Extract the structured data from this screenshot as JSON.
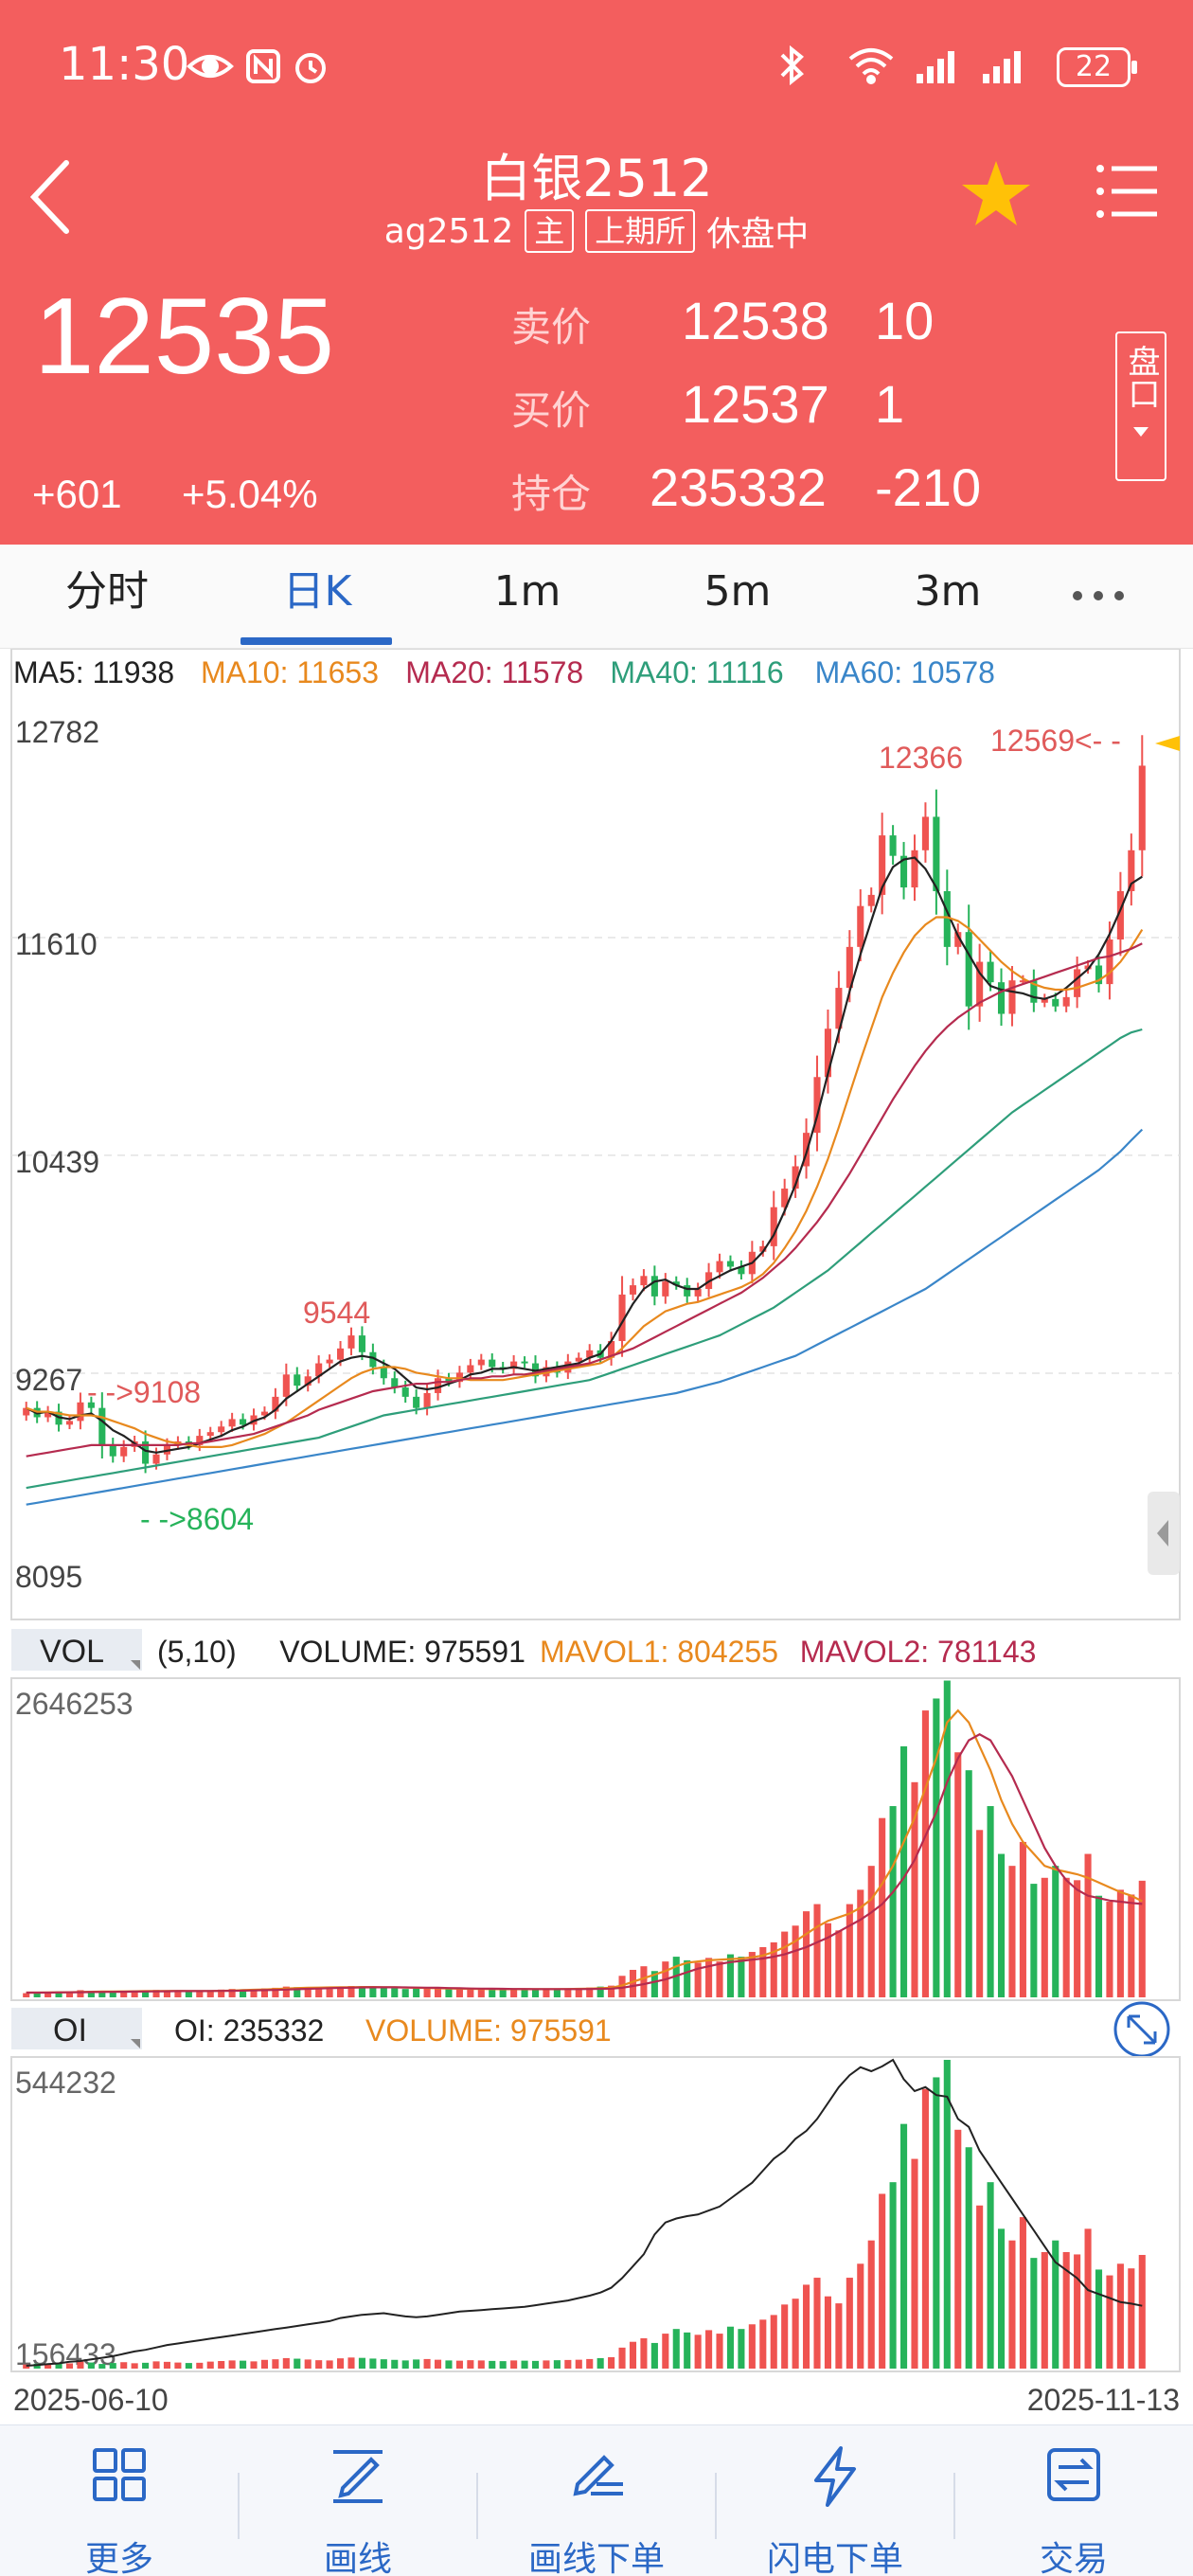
{
  "status": {
    "time": "11:30",
    "battery": "22"
  },
  "header": {
    "title": "白银2512",
    "code": "ag2512",
    "tag_main": "主",
    "tag_exchange": "上期所",
    "state": "休盘中",
    "last_price": "12535",
    "change": "+601",
    "change_pct": "+5.04%",
    "ask_label": "卖价",
    "ask_price": "12538",
    "ask_vol": "10",
    "bid_label": "买价",
    "bid_price": "12537",
    "bid_vol": "1",
    "oi_label": "持仓",
    "oi_value": "235332",
    "oi_change": "-210",
    "pankou_label": "盘口"
  },
  "tabs": [
    "分时",
    "日K",
    "1m",
    "5m",
    "3m"
  ],
  "chart_data": [
    {
      "type": "candlestick",
      "ma_legend": [
        {
          "label": "MA5: 11938",
          "color": "#222222"
        },
        {
          "label": "MA10: 11653",
          "color": "#e8891e"
        },
        {
          "label": "MA20: 11578",
          "color": "#b52b4f"
        },
        {
          "label": "MA40: 11116",
          "color": "#2e9e7a"
        },
        {
          "label": "MA60: 10578",
          "color": "#3a86c9"
        }
      ],
      "y_ticks": [
        "12782",
        "11610",
        "10439",
        "9267",
        "8095"
      ],
      "ylim": [
        8095,
        12782
      ],
      "annotations": {
        "low_left": "- ->8604",
        "high_left": "- ->9108",
        "mid_high": "9544",
        "top_high": "12366",
        "last_high": "12569<- -"
      },
      "closes": [
        9080,
        9030,
        9060,
        8990,
        9010,
        9110,
        9080,
        8880,
        8820,
        8870,
        8900,
        8780,
        8830,
        8880,
        8900,
        8880,
        8930,
        8950,
        8980,
        9020,
        8990,
        9040,
        9060,
        9140,
        9260,
        9200,
        9250,
        9320,
        9340,
        9400,
        9470,
        9380,
        9300,
        9240,
        9190,
        9140,
        9080,
        9160,
        9240,
        9220,
        9270,
        9310,
        9340,
        9300,
        9290,
        9330,
        9320,
        9250,
        9300,
        9270,
        9330,
        9350,
        9390,
        9350,
        9440,
        9690,
        9740,
        9790,
        9680,
        9760,
        9740,
        9680,
        9720,
        9810,
        9870,
        9840,
        9800,
        9920,
        9950,
        10160,
        10260,
        10380,
        10560,
        10860,
        11120,
        11340,
        11560,
        11780,
        11840,
        12160,
        12050,
        11880,
        12080,
        12260,
        11860,
        11560,
        11640,
        11240,
        11480,
        11370,
        11200,
        11380,
        11380,
        11260,
        11280,
        11240,
        11290,
        11440,
        11460,
        11360,
        11600,
        11860,
        12080,
        12535
      ],
      "ma_lines": {
        "ma5": [
          9080,
          9050,
          9060,
          9030,
          9020,
          9040,
          9050,
          9010,
          8960,
          8930,
          8890,
          8850,
          8840,
          8850,
          8860,
          8870,
          8890,
          8910,
          8930,
          8960,
          8980,
          9010,
          9030,
          9070,
          9130,
          9170,
          9210,
          9250,
          9290,
          9330,
          9350,
          9360,
          9350,
          9320,
          9290,
          9240,
          9190,
          9180,
          9190,
          9210,
          9230,
          9260,
          9270,
          9290,
          9290,
          9300,
          9290,
          9280,
          9290,
          9300,
          9310,
          9320,
          9350,
          9370,
          9440,
          9540,
          9640,
          9720,
          9760,
          9770,
          9740,
          9720,
          9720,
          9760,
          9790,
          9820,
          9840,
          9860,
          9920,
          10010,
          10140,
          10280,
          10450,
          10650,
          10880,
          11100,
          11320,
          11520,
          11700,
          11880,
          11990,
          12030,
          12040,
          11980,
          11880,
          11750,
          11620,
          11520,
          11420,
          11350,
          11330,
          11320,
          11310,
          11290,
          11280,
          11300,
          11340,
          11390,
          11440,
          11520,
          11630,
          11760,
          11900,
          11938
        ],
        "ma10": [
          9080,
          9060,
          9060,
          9050,
          9040,
          9040,
          9040,
          9030,
          9010,
          8990,
          8970,
          8940,
          8920,
          8900,
          8890,
          8880,
          8870,
          8870,
          8870,
          8880,
          8900,
          8920,
          8940,
          8970,
          9000,
          9040,
          9080,
          9120,
          9160,
          9200,
          9240,
          9270,
          9290,
          9300,
          9300,
          9290,
          9270,
          9260,
          9250,
          9240,
          9240,
          9230,
          9230,
          9230,
          9230,
          9240,
          9250,
          9260,
          9270,
          9280,
          9290,
          9300,
          9310,
          9320,
          9350,
          9400,
          9460,
          9520,
          9560,
          9600,
          9620,
          9640,
          9650,
          9670,
          9690,
          9710,
          9730,
          9760,
          9800,
          9860,
          9940,
          10030,
          10140,
          10270,
          10420,
          10590,
          10770,
          10950,
          11120,
          11290,
          11420,
          11530,
          11620,
          11680,
          11720,
          11720,
          11700,
          11660,
          11600,
          11540,
          11480,
          11430,
          11390,
          11360,
          11340,
          11330,
          11330,
          11340,
          11360,
          11380,
          11420,
          11480,
          11560,
          11653
        ],
        "ma20": [
          8820,
          8830,
          8840,
          8850,
          8860,
          8870,
          8880,
          8880,
          8880,
          8880,
          8880,
          8880,
          8880,
          8880,
          8880,
          8890,
          8890,
          8900,
          8910,
          8920,
          8930,
          8940,
          8960,
          8980,
          9000,
          9020,
          9040,
          9070,
          9090,
          9110,
          9130,
          9150,
          9170,
          9180,
          9190,
          9200,
          9210,
          9210,
          9220,
          9220,
          9230,
          9240,
          9240,
          9250,
          9250,
          9260,
          9260,
          9270,
          9280,
          9290,
          9300,
          9310,
          9320,
          9340,
          9360,
          9380,
          9400,
          9430,
          9460,
          9490,
          9520,
          9550,
          9580,
          9610,
          9640,
          9670,
          9700,
          9740,
          9780,
          9830,
          9880,
          9940,
          10010,
          10080,
          10160,
          10250,
          10340,
          10440,
          10540,
          10640,
          10740,
          10830,
          10920,
          11000,
          11070,
          11130,
          11180,
          11220,
          11260,
          11290,
          11320,
          11340,
          11360,
          11380,
          11400,
          11420,
          11440,
          11460,
          11480,
          11500,
          11510,
          11530,
          11550,
          11578
        ],
        "ma40": [
          8650,
          8660,
          8670,
          8680,
          8690,
          8700,
          8710,
          8720,
          8730,
          8740,
          8750,
          8760,
          8770,
          8780,
          8790,
          8800,
          8810,
          8820,
          8830,
          8840,
          8850,
          8860,
          8870,
          8880,
          8890,
          8900,
          8910,
          8920,
          8940,
          8960,
          8980,
          9000,
          9020,
          9040,
          9050,
          9060,
          9070,
          9080,
          9090,
          9100,
          9110,
          9120,
          9130,
          9140,
          9150,
          9160,
          9170,
          9180,
          9190,
          9200,
          9210,
          9220,
          9230,
          9250,
          9270,
          9290,
          9310,
          9330,
          9350,
          9370,
          9390,
          9410,
          9430,
          9450,
          9470,
          9500,
          9530,
          9560,
          9590,
          9620,
          9660,
          9700,
          9740,
          9780,
          9820,
          9870,
          9920,
          9970,
          10020,
          10070,
          10120,
          10170,
          10220,
          10270,
          10320,
          10370,
          10420,
          10470,
          10520,
          10570,
          10620,
          10670,
          10710,
          10750,
          10790,
          10830,
          10870,
          10910,
          10950,
          10990,
          11030,
          11070,
          11100,
          11116
        ],
        "ma60": [
          8560,
          8570,
          8580,
          8590,
          8600,
          8610,
          8620,
          8630,
          8640,
          8650,
          8660,
          8670,
          8680,
          8690,
          8700,
          8710,
          8720,
          8730,
          8740,
          8750,
          8760,
          8770,
          8780,
          8790,
          8800,
          8810,
          8820,
          8830,
          8840,
          8850,
          8860,
          8870,
          8880,
          8890,
          8900,
          8910,
          8920,
          8930,
          8940,
          8950,
          8960,
          8970,
          8980,
          8990,
          9000,
          9010,
          9020,
          9030,
          9040,
          9050,
          9060,
          9070,
          9080,
          9090,
          9100,
          9110,
          9120,
          9130,
          9140,
          9150,
          9160,
          9175,
          9190,
          9205,
          9220,
          9240,
          9260,
          9280,
          9300,
          9320,
          9340,
          9360,
          9390,
          9420,
          9450,
          9480,
          9510,
          9540,
          9570,
          9600,
          9630,
          9660,
          9690,
          9720,
          9760,
          9800,
          9840,
          9880,
          9920,
          9960,
          10000,
          10040,
          10080,
          10120,
          10160,
          10200,
          10240,
          10280,
          10320,
          10360,
          10410,
          10460,
          10520,
          10578
        ]
      }
    },
    {
      "type": "bar",
      "name": "VOL",
      "legend": [
        {
          "label": "(5,10)",
          "color": "#222222"
        },
        {
          "label": "VOLUME: 975591",
          "color": "#222222"
        },
        {
          "label": "MAVOL1: 804255",
          "color": "#e8891e"
        },
        {
          "label": "MAVOL2: 781143",
          "color": "#b52b4f"
        }
      ],
      "y_tick": "2646253",
      "ymax": 2646253,
      "values": [
        35000,
        42000,
        38000,
        50000,
        45000,
        60000,
        52000,
        40000,
        48000,
        55000,
        46000,
        50000,
        62000,
        58000,
        52000,
        48000,
        50000,
        60000,
        65000,
        70000,
        68000,
        62000,
        75000,
        80000,
        90000,
        85000,
        78000,
        72000,
        70000,
        88000,
        95000,
        92000,
        86000,
        80000,
        75000,
        70000,
        78000,
        82000,
        76000,
        70000,
        68000,
        72000,
        70000,
        66000,
        64000,
        70000,
        68000,
        66000,
        70000,
        72000,
        74000,
        76000,
        82000,
        90000,
        98000,
        180000,
        230000,
        260000,
        220000,
        300000,
        340000,
        310000,
        290000,
        330000,
        300000,
        360000,
        340000,
        380000,
        420000,
        460000,
        550000,
        600000,
        720000,
        780000,
        620000,
        560000,
        780000,
        900000,
        1100000,
        1500000,
        1600000,
        2100000,
        1800000,
        2400000,
        2500000,
        2650000,
        2050000,
        1900000,
        1400000,
        1600000,
        1200000,
        1100000,
        1300000,
        950000,
        1000000,
        1100000,
        1000000,
        980000,
        1200000,
        850000,
        800000,
        900000,
        860000,
        975591
      ],
      "mavol1": [
        40000,
        40000,
        41000,
        42000,
        43000,
        45000,
        47000,
        48000,
        49000,
        50000,
        51000,
        52000,
        53000,
        54000,
        54000,
        53000,
        52000,
        53000,
        55000,
        57000,
        60000,
        63000,
        66000,
        70000,
        74000,
        78000,
        80000,
        82000,
        83000,
        84000,
        85000,
        86000,
        86000,
        85000,
        84000,
        82000,
        80000,
        78000,
        76000,
        74000,
        72000,
        71000,
        70000,
        69000,
        68000,
        68000,
        68000,
        68000,
        68000,
        69000,
        70000,
        71000,
        73000,
        76000,
        80000,
        100000,
        130000,
        160000,
        190000,
        220000,
        260000,
        290000,
        300000,
        310000,
        315000,
        320000,
        325000,
        335000,
        350000,
        380000,
        420000,
        470000,
        530000,
        590000,
        640000,
        670000,
        700000,
        750000,
        820000,
        950000,
        1100000,
        1300000,
        1500000,
        1750000,
        2000000,
        2300000,
        2400000,
        2300000,
        2100000,
        1900000,
        1650000,
        1450000,
        1300000,
        1200000,
        1100000,
        1070000,
        1050000,
        1030000,
        1000000,
        960000,
        920000,
        880000,
        850000,
        804255
      ],
      "mavol2": [
        40000,
        40000,
        40000,
        41000,
        42000,
        43000,
        44000,
        45000,
        46000,
        47000,
        48000,
        49000,
        50000,
        51000,
        52000,
        52000,
        52000,
        53000,
        54000,
        55000,
        56000,
        58000,
        60000,
        62000,
        65000,
        68000,
        71000,
        74000,
        77000,
        79000,
        81000,
        83000,
        84000,
        84000,
        84000,
        83000,
        82000,
        81000,
        80000,
        78000,
        76000,
        74000,
        73000,
        72000,
        71000,
        70000,
        70000,
        69000,
        69000,
        69000,
        69000,
        69000,
        70000,
        71000,
        73000,
        80000,
        95000,
        110000,
        130000,
        150000,
        180000,
        210000,
        240000,
        260000,
        280000,
        295000,
        305000,
        315000,
        325000,
        340000,
        360000,
        390000,
        420000,
        460000,
        500000,
        550000,
        600000,
        650000,
        710000,
        780000,
        880000,
        1000000,
        1150000,
        1350000,
        1550000,
        1800000,
        2000000,
        2150000,
        2200000,
        2150000,
        2000000,
        1850000,
        1650000,
        1450000,
        1250000,
        1100000,
        980000,
        900000,
        850000,
        830000,
        810000,
        800000,
        790000,
        781143
      ]
    },
    {
      "type": "bar",
      "name": "OI",
      "legend": [
        {
          "label": "OI: 235332",
          "color": "#222222"
        },
        {
          "label": "VOLUME: 975591",
          "color": "#e8891e"
        }
      ],
      "y_ticks": [
        "544232",
        "156433"
      ],
      "ylim": [
        156433,
        544232
      ],
      "oi_line": [
        160000,
        161000,
        162000,
        163000,
        165000,
        166000,
        168000,
        170000,
        172000,
        175000,
        178000,
        180000,
        183000,
        186000,
        188000,
        190000,
        192000,
        194000,
        196000,
        198000,
        200000,
        202000,
        204000,
        206000,
        208000,
        210000,
        212000,
        214000,
        216000,
        220000,
        222000,
        224000,
        225000,
        226000,
        224000,
        222000,
        221000,
        222000,
        224000,
        226000,
        228000,
        229000,
        230000,
        231000,
        232000,
        233000,
        234000,
        236000,
        238000,
        240000,
        242000,
        245000,
        248000,
        252000,
        258000,
        270000,
        285000,
        300000,
        325000,
        340000,
        345000,
        348000,
        350000,
        355000,
        360000,
        370000,
        380000,
        390000,
        405000,
        420000,
        430000,
        445000,
        455000,
        470000,
        490000,
        510000,
        525000,
        535000,
        530000,
        536000,
        544232,
        520000,
        505000,
        510000,
        500000,
        498000,
        470000,
        460000,
        430000,
        410000,
        390000,
        370000,
        350000,
        330000,
        310000,
        290000,
        280000,
        270000,
        255000,
        250000,
        245000,
        240000,
        238000,
        235332
      ]
    }
  ],
  "vol_panel": {
    "label": "VOL"
  },
  "oi_panel": {
    "label": "OI"
  },
  "x_axis": {
    "start": "2025-06-10",
    "end": "2025-11-13"
  },
  "toolbar": [
    {
      "label": "更多",
      "icon": "grid-icon"
    },
    {
      "label": "画线",
      "icon": "pen-line-icon"
    },
    {
      "label": "画线下单",
      "icon": "pen-order-icon"
    },
    {
      "label": "闪电下单",
      "icon": "lightning-icon"
    },
    {
      "label": "交易",
      "icon": "trade-icon"
    }
  ],
  "colors": {
    "up": "#ef5350",
    "down": "#26b35a",
    "header_bg": "#f35e5e",
    "accent": "#2b68c6",
    "star": "#ffc107"
  }
}
